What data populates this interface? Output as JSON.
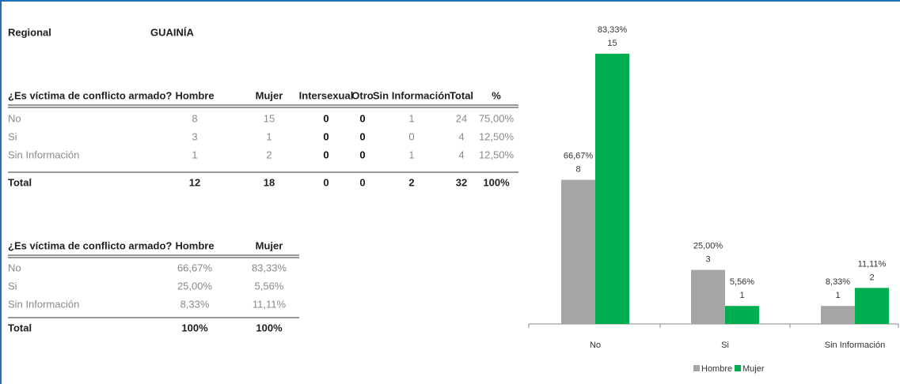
{
  "header": {
    "label": "Regional",
    "value": "GUAINÍA"
  },
  "table1": {
    "headers": [
      "¿Es víctima de conflicto armado?",
      "Hombre",
      "Mujer",
      "Intersexual",
      "Otro",
      "Sin Información",
      "Total",
      "%"
    ],
    "rows": [
      [
        "No",
        "8",
        "15",
        "0",
        "0",
        "1",
        "24",
        "75,00%"
      ],
      [
        "Si",
        "3",
        "1",
        "0",
        "0",
        "0",
        "4",
        "12,50%"
      ],
      [
        "Sin Información",
        "1",
        "2",
        "0",
        "0",
        "1",
        "4",
        "12,50%"
      ]
    ],
    "total": [
      "Total",
      "12",
      "18",
      "0",
      "0",
      "2",
      "32",
      "100%"
    ]
  },
  "table2": {
    "headers": [
      "¿Es víctima de conflicto armado?",
      "Hombre",
      "Mujer"
    ],
    "rows": [
      [
        "No",
        "66,67%",
        "83,33%"
      ],
      [
        "Si",
        "25,00%",
        "5,56%"
      ],
      [
        "Sin Información",
        "8,33%",
        "11,11%"
      ]
    ],
    "total": [
      "Total",
      "100%",
      "100%"
    ]
  },
  "chart_data": {
    "type": "bar",
    "categories": [
      "No",
      "Si",
      "Sin Información"
    ],
    "series": [
      {
        "name": "Hombre",
        "color": "#a5a5a5",
        "values": [
          8,
          3,
          1
        ],
        "percent_labels": [
          "66,67%",
          "25,00%",
          "8,33%"
        ]
      },
      {
        "name": "Mujer",
        "color": "#00b050",
        "values": [
          15,
          1,
          2
        ],
        "percent_labels": [
          "83,33%",
          "5,56%",
          "11,11%"
        ]
      }
    ],
    "legend": "bottom"
  }
}
